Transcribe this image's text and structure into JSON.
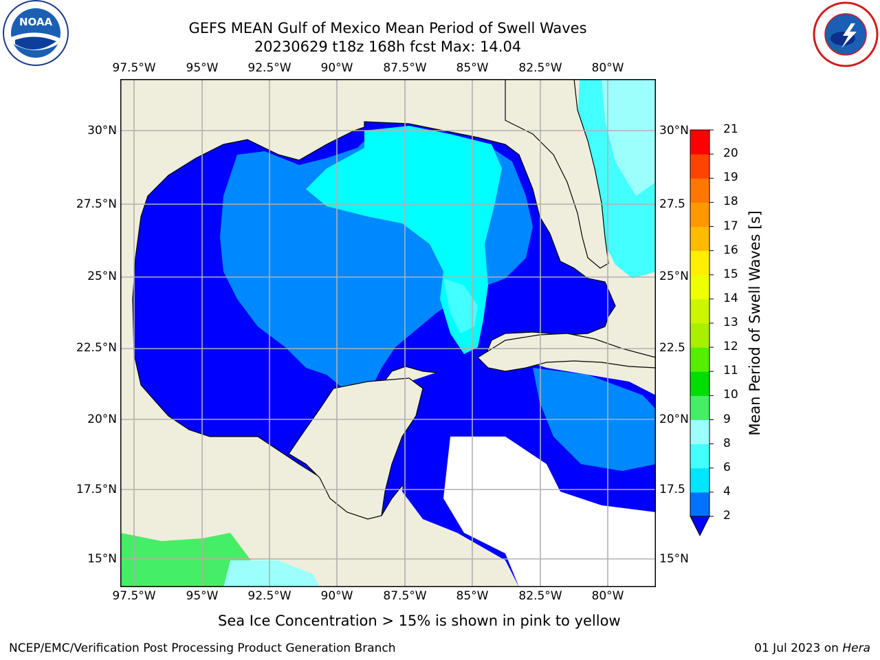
{
  "title": {
    "line1": "GEFS MEAN Gulf of Mexico Mean Period of Swell Waves",
    "line2": "20230629 t18z 168h fcst   Max: 14.04"
  },
  "logos": {
    "left": "NOAA",
    "left_ring": "NATIONAL OCEANIC AND ATMOSPHERIC ADMINISTRATION · U.S. DEPARTMENT OF COMMERCE",
    "right_ring": "NATIONAL WEATHER SERVICE"
  },
  "map": {
    "lon_labels": [
      "97.5°W",
      "95°W",
      "92.5°W",
      "90°W",
      "87.5°W",
      "85°W",
      "82.5°W",
      "80°W"
    ],
    "lat_labels_left": [
      "30°N",
      "27.5°N",
      "25°N",
      "22.5°N",
      "20°N",
      "17.5°N",
      "15°N"
    ],
    "lat_labels_right": [
      "30°N",
      "27.5",
      "25°N",
      "22.5",
      "20°N",
      "17.5",
      "15°N"
    ],
    "colors": {
      "land": "#efeedd",
      "blue": "#0000ff",
      "mid": "#0088ff",
      "cyan": "#00ffff",
      "light": "#44ffff",
      "pale": "#9dfffb",
      "green": "#44ee66"
    }
  },
  "colorbar": {
    "label": "Mean Period of Swell Waves [s]",
    "ticks": [
      "2",
      "4",
      "6",
      "8",
      "9",
      "10",
      "11",
      "12",
      "13",
      "14",
      "15",
      "16",
      "17",
      "18",
      "19",
      "20",
      "21"
    ],
    "colors": [
      "#0072ff",
      "#00e6ff",
      "#44ffff",
      "#9dfffb",
      "#44ee66",
      "#00dd00",
      "#55ee00",
      "#aaee00",
      "#ccf500",
      "#eeff00",
      "#ffee00",
      "#ffbb00",
      "#ff9900",
      "#ff7700",
      "#ff4400",
      "#ff0000"
    ],
    "extend_color": "#0000ff"
  },
  "caption": "Sea Ice Concentration > 15% is shown in pink to yellow",
  "footer": {
    "left": "NCEP/EMC/Verification Post Processing Product Generation Branch",
    "right_prefix": "01 Jul 2023 on ",
    "right_host": "Hera"
  }
}
